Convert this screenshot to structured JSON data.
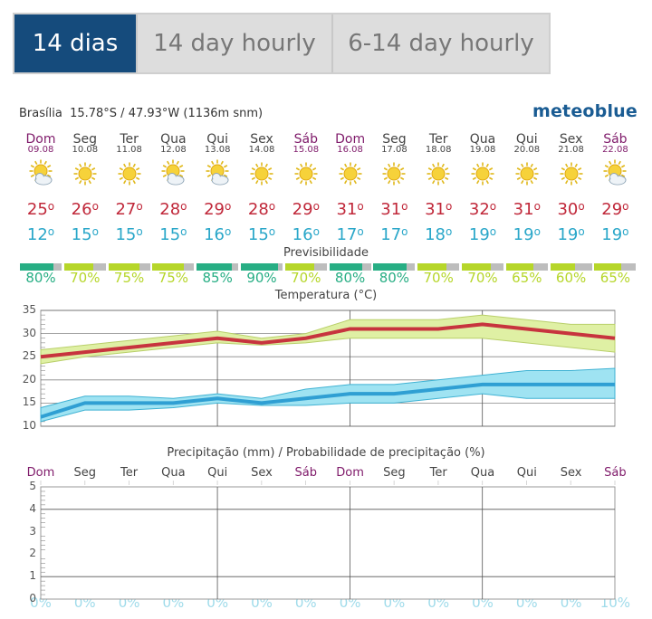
{
  "tabs": [
    {
      "label": "14 dias",
      "active": true
    },
    {
      "label": "14 day hourly",
      "active": false
    },
    {
      "label": "6-14 day hourly",
      "active": false
    }
  ],
  "location": {
    "name": "Brasília",
    "coords": "15.78°S / 47.93°W (1136m snm)"
  },
  "brand": "meteoblue",
  "days": [
    {
      "name": "Dom",
      "date": "09.08",
      "weekend": true,
      "icon": "sun-cloud-icon",
      "tmax": "25",
      "tmin": "12",
      "pred": "80%",
      "pred_value": 0.8
    },
    {
      "name": "Seg",
      "date": "10.08",
      "weekend": false,
      "icon": "sun-icon",
      "tmax": "26",
      "tmin": "15",
      "pred": "70%",
      "pred_value": 0.7
    },
    {
      "name": "Ter",
      "date": "11.08",
      "weekend": false,
      "icon": "sun-icon",
      "tmax": "27",
      "tmin": "15",
      "pred": "75%",
      "pred_value": 0.75
    },
    {
      "name": "Qua",
      "date": "12.08",
      "weekend": false,
      "icon": "sun-cloud-icon",
      "tmax": "28",
      "tmin": "15",
      "pred": "75%",
      "pred_value": 0.75
    },
    {
      "name": "Qui",
      "date": "13.08",
      "weekend": false,
      "icon": "sun-cloud-icon",
      "tmax": "29",
      "tmin": "16",
      "pred": "85%",
      "pred_value": 0.85
    },
    {
      "name": "Sex",
      "date": "14.08",
      "weekend": false,
      "icon": "sun-icon",
      "tmax": "28",
      "tmin": "15",
      "pred": "90%",
      "pred_value": 0.9
    },
    {
      "name": "Sáb",
      "date": "15.08",
      "weekend": true,
      "icon": "sun-icon",
      "tmax": "29",
      "tmin": "16",
      "pred": "70%",
      "pred_value": 0.7
    },
    {
      "name": "Dom",
      "date": "16.08",
      "weekend": true,
      "icon": "sun-icon",
      "tmax": "31",
      "tmin": "17",
      "pred": "80%",
      "pred_value": 0.8
    },
    {
      "name": "Seg",
      "date": "17.08",
      "weekend": false,
      "icon": "sun-icon",
      "tmax": "31",
      "tmin": "17",
      "pred": "80%",
      "pred_value": 0.8
    },
    {
      "name": "Ter",
      "date": "18.08",
      "weekend": false,
      "icon": "sun-icon",
      "tmax": "31",
      "tmin": "18",
      "pred": "70%",
      "pred_value": 0.7
    },
    {
      "name": "Qua",
      "date": "19.08",
      "weekend": false,
      "icon": "sun-icon",
      "tmax": "32",
      "tmin": "19",
      "pred": "70%",
      "pred_value": 0.7
    },
    {
      "name": "Qui",
      "date": "20.08",
      "weekend": false,
      "icon": "sun-icon",
      "tmax": "31",
      "tmin": "19",
      "pred": "65%",
      "pred_value": 0.65
    },
    {
      "name": "Sex",
      "date": "21.08",
      "weekend": false,
      "icon": "sun-icon",
      "tmax": "30",
      "tmin": "19",
      "pred": "60%",
      "pred_value": 0.6
    },
    {
      "name": "Sáb",
      "date": "22.08",
      "weekend": true,
      "icon": "sun-cloud-icon",
      "tmax": "29",
      "tmin": "19",
      "pred": "65%",
      "pred_value": 0.65
    }
  ],
  "predictability_title": "Previsibilidade",
  "temperature_title": "Temperatura (°C)",
  "precip_title": "Precipitação (mm) / Probabilidade de precipitação (%)",
  "precip_probs": [
    "0%",
    "0%",
    "0%",
    "0%",
    "0%",
    "0%",
    "0%",
    "0%",
    "0%",
    "0%",
    "0%",
    "0%",
    "0%",
    "10%"
  ],
  "colors": {
    "tab_active": "#154b7c",
    "tmax": "#c0283a",
    "tmin": "#2aa7c9",
    "weekend": "#7f1a6a",
    "pred_high": "#27ae84",
    "pred_mid": "#b6d62a",
    "brand": "#1a5c93"
  },
  "chart_data": [
    {
      "type": "line",
      "title": "Temperatura (°C)",
      "x": [
        "09.08",
        "10.08",
        "11.08",
        "12.08",
        "13.08",
        "14.08",
        "15.08",
        "16.08",
        "17.08",
        "18.08",
        "19.08",
        "20.08",
        "21.08",
        "22.08"
      ],
      "ylim": [
        10,
        35
      ],
      "yticks": [
        "10",
        "15",
        "20",
        "25",
        "30",
        "35"
      ],
      "series": [
        {
          "name": "max",
          "values": [
            25,
            26,
            27,
            28,
            29,
            28,
            29,
            31,
            31,
            31,
            32,
            31,
            30,
            29
          ],
          "range_low": [
            23.5,
            25,
            26,
            27,
            28,
            27.5,
            28,
            29,
            29,
            29,
            29,
            28,
            27,
            26
          ],
          "range_high": [
            26.5,
            27.5,
            28.5,
            29.5,
            30.5,
            29,
            30,
            33,
            33,
            33,
            34,
            33,
            32,
            32
          ]
        },
        {
          "name": "min",
          "values": [
            12,
            15,
            15,
            15,
            16,
            15,
            16,
            17,
            17,
            18,
            19,
            19,
            19,
            19
          ],
          "range_low": [
            11,
            13.5,
            13.5,
            14,
            15,
            14.5,
            14.5,
            15,
            15,
            16,
            17,
            16,
            16,
            16
          ],
          "range_high": [
            14,
            16.5,
            16.5,
            16,
            17,
            16,
            18,
            19,
            19,
            20,
            21,
            22,
            22,
            22.5
          ]
        }
      ]
    },
    {
      "type": "bar",
      "title": "Precipitação (mm) / Probabilidade de precipitação (%)",
      "categories": [
        "Dom",
        "Seg",
        "Ter",
        "Qua",
        "Qui",
        "Sex",
        "Sáb",
        "Dom",
        "Seg",
        "Ter",
        "Qua",
        "Qui",
        "Sex",
        "Sáb"
      ],
      "ylim": [
        0,
        5
      ],
      "yticks": [
        "0",
        "1",
        "2",
        "3",
        "4",
        "5"
      ],
      "values": [
        0,
        0,
        0,
        0,
        0,
        0,
        0,
        0,
        0,
        0,
        0,
        0,
        0,
        0
      ],
      "probabilities": [
        0,
        0,
        0,
        0,
        0,
        0,
        0,
        0,
        0,
        0,
        0,
        0,
        0,
        10
      ]
    }
  ]
}
